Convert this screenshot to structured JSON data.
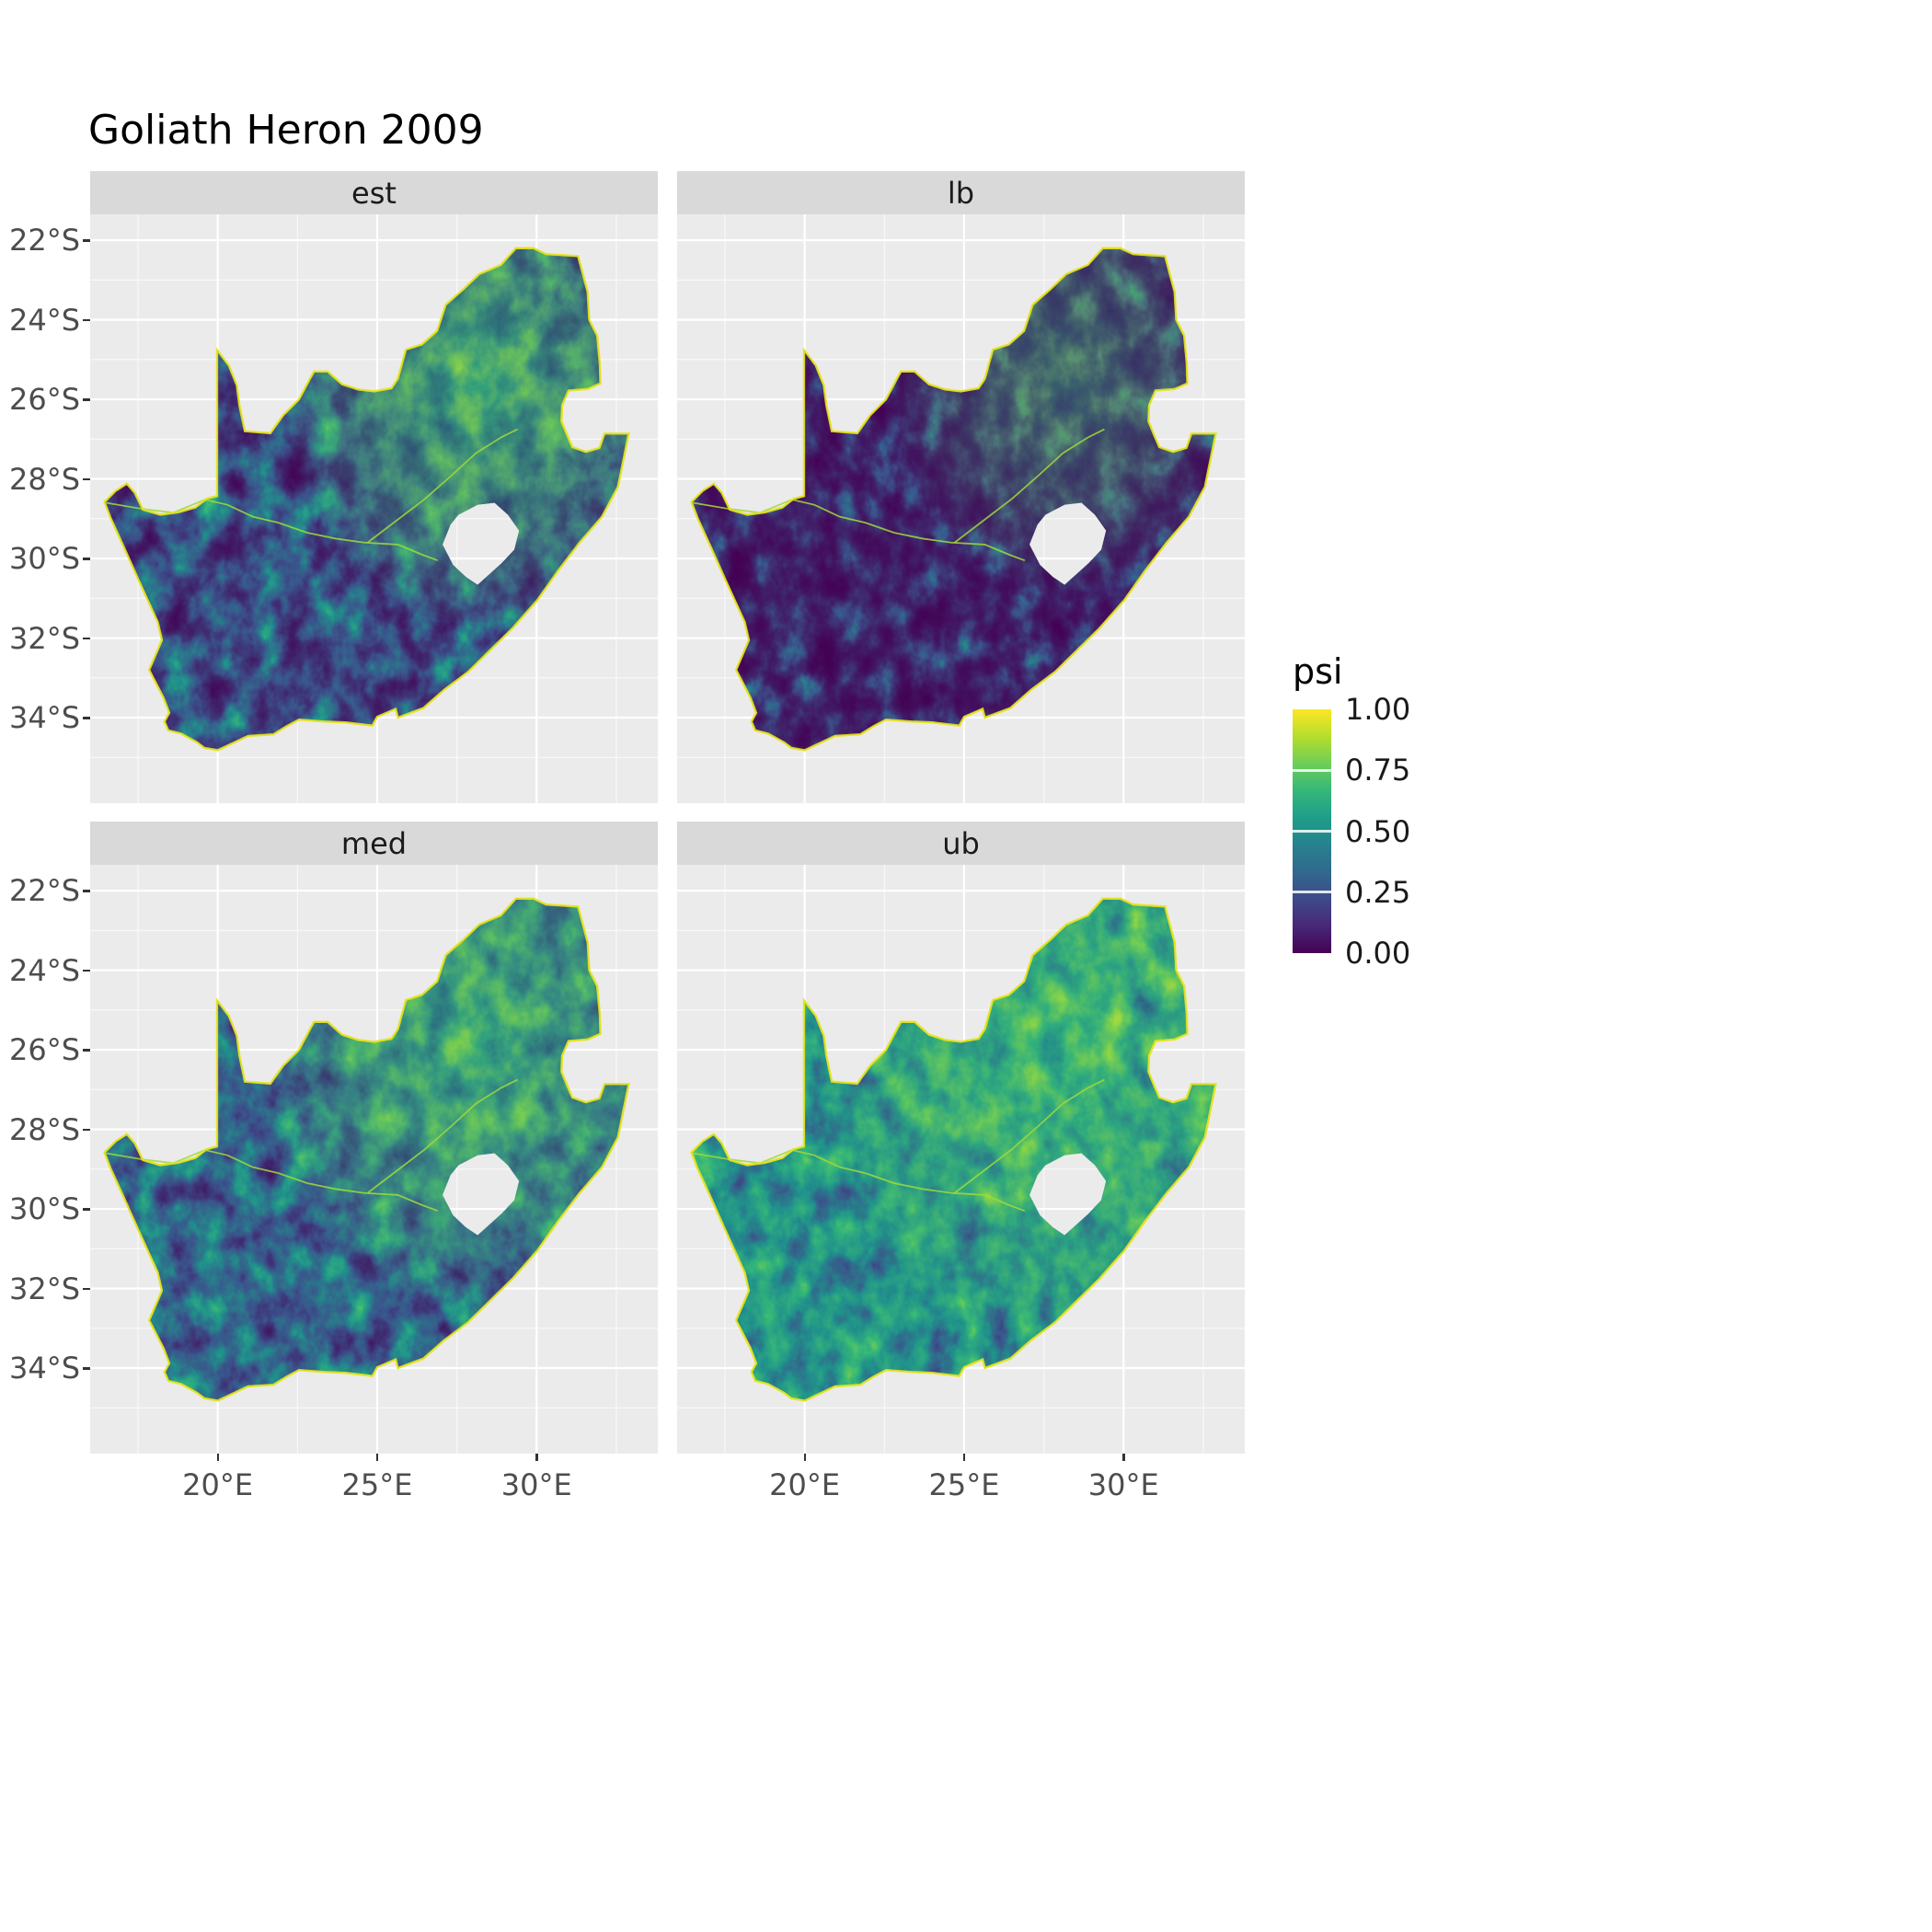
{
  "title": "Goliath Heron 2009",
  "style": {
    "panel_bg": "#ebebeb",
    "strip_bg": "#d9d9d9",
    "grid_color": "#ffffff",
    "axis_text_color": "#4d4d4d",
    "text_color": "#1a1a1a",
    "coast_fringe_color": "#e8e419",
    "river_color": "#9fda3a",
    "map_base_color": "#440154"
  },
  "chart_data": {
    "type": "heatmap",
    "title": "Goliath Heron 2009",
    "facet_layout": "2x2",
    "grid": true,
    "legend_position": "right",
    "region": "South Africa",
    "facets": [
      {
        "label": "est",
        "render": {
          "exponent": 2.4,
          "seed": 11,
          "boost_opacity": 0.85,
          "boost": {
            "lon": 28.2,
            "lat": -25.6,
            "r": 6.2
          }
        }
      },
      {
        "label": "lb",
        "render": {
          "exponent": 3.6,
          "seed": 23,
          "boost_opacity": 0.5,
          "boost": {
            "lon": 28.2,
            "lat": -25.4,
            "r": 5.5
          }
        }
      },
      {
        "label": "med",
        "render": {
          "exponent": 1.9,
          "seed": 37,
          "boost_opacity": 0.85,
          "boost": {
            "lon": 28.0,
            "lat": -25.8,
            "r": 6.8
          }
        }
      },
      {
        "label": "ub",
        "render": {
          "exponent": 1.25,
          "seed": 51,
          "boost_opacity": 0.95,
          "boost": {
            "lon": 27.8,
            "lat": -26.0,
            "r": 7.5
          }
        }
      }
    ],
    "x_axis": {
      "tick_labels": [
        "20°E",
        "25°E",
        "30°E"
      ],
      "tick_values": [
        20,
        25,
        30
      ],
      "minor_values": [
        17.5,
        22.5,
        27.5,
        32.5
      ],
      "range_lon": [
        16.0,
        33.8
      ]
    },
    "y_axis": {
      "tick_labels": [
        "22°S",
        "24°S",
        "26°S",
        "28°S",
        "30°S",
        "32°S",
        "34°S"
      ],
      "tick_values": [
        -22,
        -24,
        -26,
        -28,
        -30,
        -32,
        -34
      ],
      "minor_values": [
        -23,
        -25,
        -27,
        -29,
        -31,
        -33,
        -35
      ],
      "range_lat": [
        -36.15,
        -21.35
      ]
    },
    "legend": {
      "title": "psi",
      "breaks": [
        "1.00",
        "0.75",
        "0.50",
        "0.25",
        "0.00"
      ],
      "break_values": [
        1,
        0.75,
        0.5,
        0.25,
        0
      ],
      "colorscale_name": "viridis",
      "gradient": [
        "#440154",
        "#482878",
        "#3e4a89",
        "#31688e",
        "#26828e",
        "#1f9e89",
        "#35b779",
        "#6ece58",
        "#b5de2b",
        "#fde725"
      ]
    },
    "render_shared": {
      "base_frequency": 1.1,
      "octaves": 4,
      "boost_exponent": 0.65,
      "table_r": "0.267 0.231 0.129 0.208 0.565 0.992",
      "table_g": "0.004 0.322 0.569 0.718 0.843 0.906",
      "table_b": "0.329 0.545 0.549 0.475 0.263 0.145"
    },
    "map": {
      "south_africa_outline": [
        [
          16.45,
          -28.58
        ],
        [
          16.8,
          -28.3
        ],
        [
          17.15,
          -28.12
        ],
        [
          17.4,
          -28.35
        ],
        [
          17.65,
          -28.77
        ],
        [
          18.2,
          -28.9
        ],
        [
          18.75,
          -28.84
        ],
        [
          19.3,
          -28.72
        ],
        [
          19.65,
          -28.5
        ],
        [
          19.98,
          -28.43
        ],
        [
          19.98,
          -24.76
        ],
        [
          20.35,
          -25.15
        ],
        [
          20.6,
          -25.65
        ],
        [
          20.68,
          -26.15
        ],
        [
          20.85,
          -26.8
        ],
        [
          21.65,
          -26.85
        ],
        [
          22.05,
          -26.4
        ],
        [
          22.55,
          -26.0
        ],
        [
          22.88,
          -25.5
        ],
        [
          23.02,
          -25.3
        ],
        [
          23.45,
          -25.3
        ],
        [
          23.9,
          -25.62
        ],
        [
          24.4,
          -25.75
        ],
        [
          24.9,
          -25.8
        ],
        [
          25.45,
          -25.72
        ],
        [
          25.65,
          -25.48
        ],
        [
          25.9,
          -24.75
        ],
        [
          26.4,
          -24.62
        ],
        [
          26.88,
          -24.28
        ],
        [
          27.15,
          -23.62
        ],
        [
          27.72,
          -23.22
        ],
        [
          28.2,
          -22.85
        ],
        [
          28.88,
          -22.62
        ],
        [
          29.35,
          -22.2
        ],
        [
          29.9,
          -22.2
        ],
        [
          30.3,
          -22.35
        ],
        [
          31.3,
          -22.4
        ],
        [
          31.6,
          -23.3
        ],
        [
          31.65,
          -24.0
        ],
        [
          31.9,
          -24.4
        ],
        [
          31.98,
          -25.1
        ],
        [
          32.0,
          -25.6
        ],
        [
          31.6,
          -25.74
        ],
        [
          31.0,
          -25.78
        ],
        [
          30.8,
          -26.15
        ],
        [
          30.78,
          -26.55
        ],
        [
          30.97,
          -26.92
        ],
        [
          31.12,
          -27.2
        ],
        [
          31.55,
          -27.32
        ],
        [
          31.97,
          -27.22
        ],
        [
          32.13,
          -26.86
        ],
        [
          32.89,
          -26.86
        ],
        [
          32.55,
          -28.2
        ],
        [
          32.05,
          -28.95
        ],
        [
          31.35,
          -29.6
        ],
        [
          30.68,
          -30.3
        ],
        [
          30.02,
          -31.05
        ],
        [
          29.25,
          -31.75
        ],
        [
          28.55,
          -32.3
        ],
        [
          27.85,
          -32.85
        ],
        [
          27.1,
          -33.3
        ],
        [
          26.45,
          -33.76
        ],
        [
          25.65,
          -34.0
        ],
        [
          25.58,
          -33.78
        ],
        [
          25.0,
          -33.98
        ],
        [
          24.85,
          -34.2
        ],
        [
          24.0,
          -34.12
        ],
        [
          23.35,
          -34.1
        ],
        [
          22.55,
          -34.05
        ],
        [
          22.15,
          -34.22
        ],
        [
          21.75,
          -34.42
        ],
        [
          20.95,
          -34.46
        ],
        [
          20.0,
          -34.82
        ],
        [
          19.58,
          -34.76
        ],
        [
          19.35,
          -34.62
        ],
        [
          18.85,
          -34.4
        ],
        [
          18.45,
          -34.32
        ],
        [
          18.33,
          -34.1
        ],
        [
          18.48,
          -33.88
        ],
        [
          18.3,
          -33.5
        ],
        [
          17.85,
          -32.8
        ],
        [
          18.25,
          -32.05
        ],
        [
          18.12,
          -31.6
        ],
        [
          17.55,
          -30.6
        ],
        [
          17.05,
          -29.7
        ],
        [
          16.65,
          -29.0
        ]
      ],
      "lesotho_hole": [
        [
          27.05,
          -29.65
        ],
        [
          27.3,
          -29.15
        ],
        [
          27.55,
          -28.9
        ],
        [
          28.15,
          -28.65
        ],
        [
          28.68,
          -28.6
        ],
        [
          29.1,
          -28.9
        ],
        [
          29.45,
          -29.3
        ],
        [
          29.3,
          -29.78
        ],
        [
          28.9,
          -30.12
        ],
        [
          28.15,
          -30.66
        ],
        [
          27.78,
          -30.46
        ],
        [
          27.38,
          -30.16
        ]
      ],
      "orange_river": [
        [
          16.5,
          -28.6
        ],
        [
          17.6,
          -28.75
        ],
        [
          18.6,
          -28.85
        ],
        [
          19.6,
          -28.52
        ],
        [
          20.3,
          -28.65
        ],
        [
          21.1,
          -28.95
        ],
        [
          21.9,
          -29.1
        ],
        [
          22.8,
          -29.35
        ],
        [
          23.7,
          -29.5
        ],
        [
          24.6,
          -29.6
        ],
        [
          25.65,
          -29.65
        ],
        [
          26.4,
          -29.9
        ],
        [
          26.9,
          -30.05
        ]
      ],
      "vaal_river": [
        [
          24.7,
          -29.6
        ],
        [
          25.6,
          -29.05
        ],
        [
          26.5,
          -28.5
        ],
        [
          27.35,
          -27.9
        ],
        [
          28.1,
          -27.35
        ],
        [
          28.9,
          -26.95
        ],
        [
          29.4,
          -26.75
        ]
      ]
    }
  }
}
